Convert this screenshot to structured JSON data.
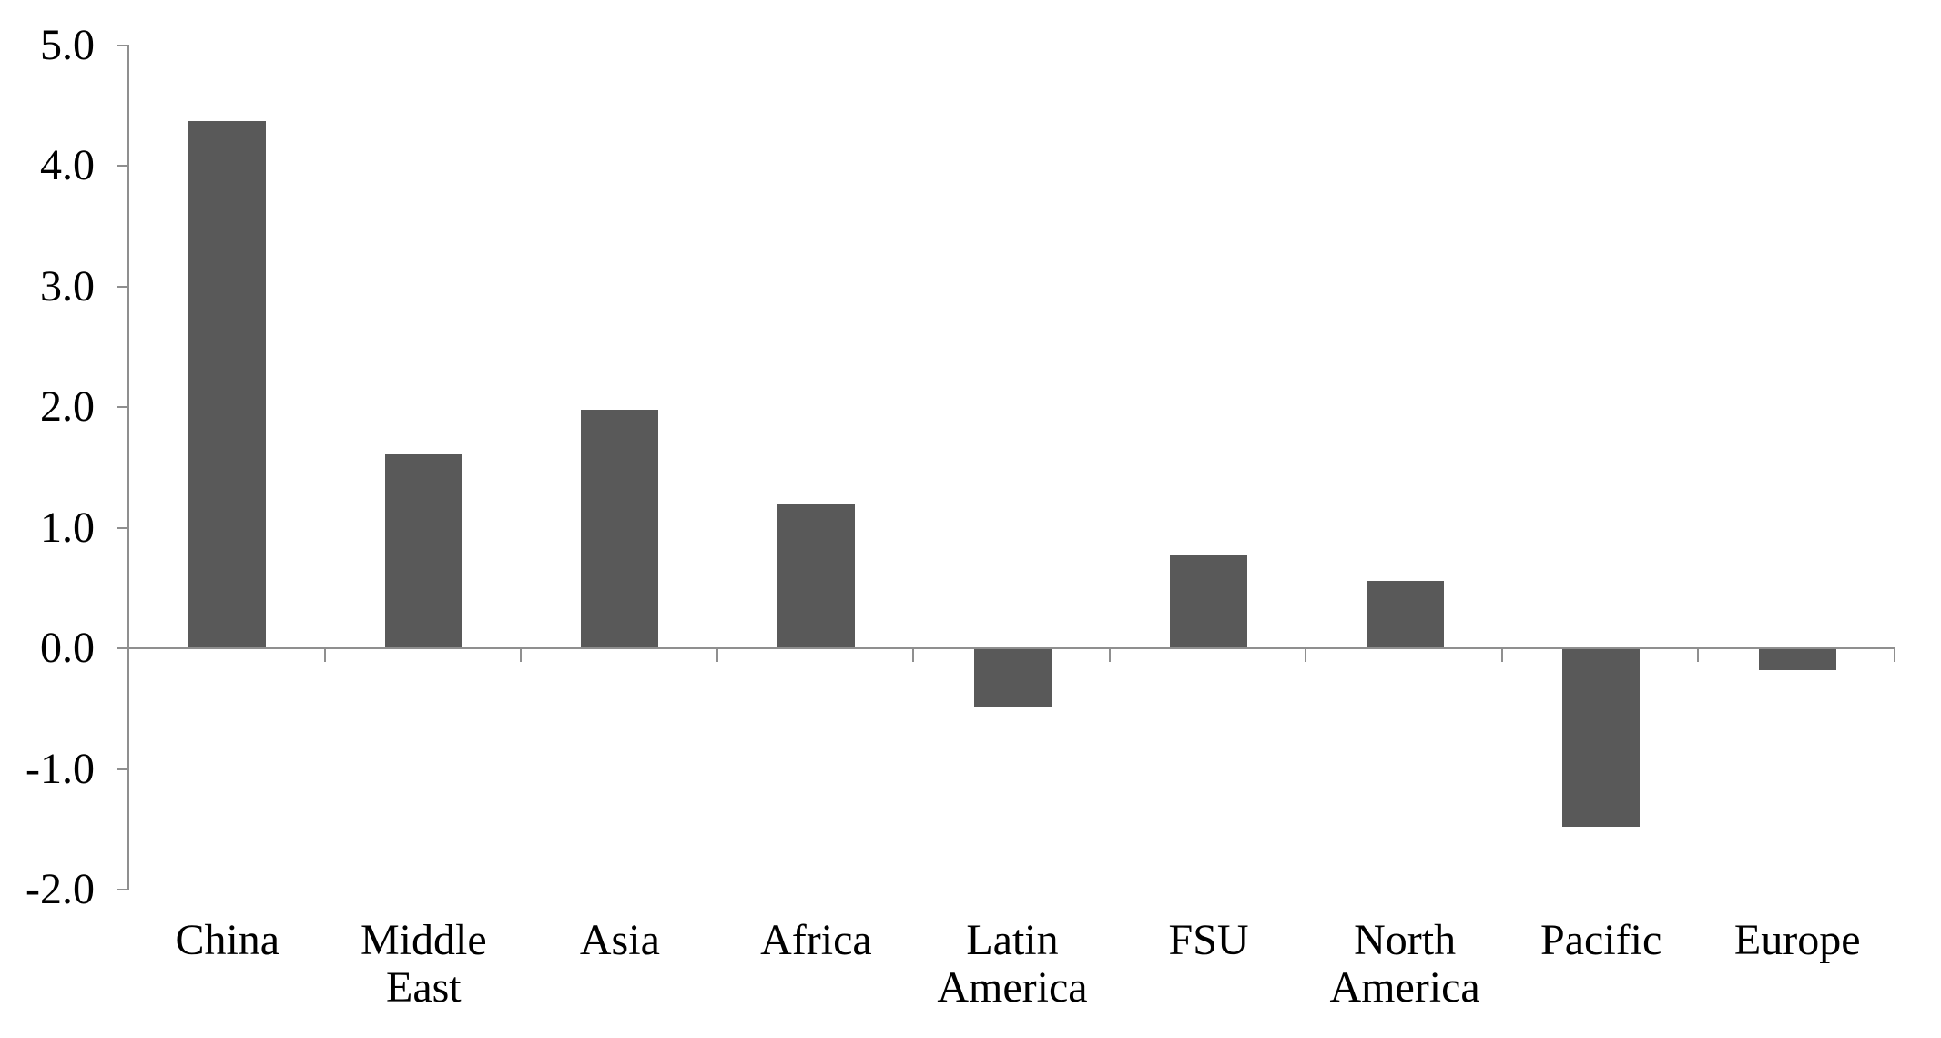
{
  "chart_data": {
    "type": "bar",
    "title": "",
    "xlabel": "",
    "ylabel": "",
    "categories": [
      "China",
      "Middle East",
      "Asia",
      "Africa",
      "Latin America",
      "FSU",
      "North America",
      "Pacific",
      "Europe"
    ],
    "category_tick_labels": [
      "China",
      "Middle\nEast",
      "Asia",
      "Africa",
      "Latin\nAmerica",
      "FSU",
      "North\nAmerica",
      "Pacific",
      "Europe"
    ],
    "values": [
      4.37,
      1.61,
      1.98,
      1.2,
      -0.48,
      0.78,
      0.56,
      -1.48,
      -0.18
    ],
    "ylim": [
      -2.0,
      5.0
    ],
    "ytick_step": 1.0,
    "ytick_labels": [
      "5.0",
      "4.0",
      "3.0",
      "2.0",
      "1.0",
      "0.0",
      "-1.0",
      "-2.0"
    ],
    "grid": false,
    "legend": "none",
    "colors": {
      "bar": "#595959",
      "axis": "#8f8f8f",
      "text": "#000000",
      "background": "#ffffff"
    }
  }
}
